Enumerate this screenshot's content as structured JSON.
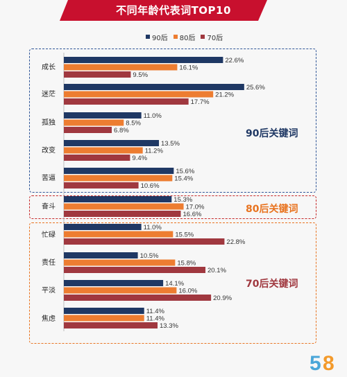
{
  "title": "不同年龄代表词TOP10",
  "legend": [
    {
      "name": "90后",
      "color": "#1f3864"
    },
    {
      "name": "80后",
      "color": "#ed7d31"
    },
    {
      "name": "70后",
      "color": "#a0383f"
    }
  ],
  "groups": {
    "g90": {
      "label": "90后关键词",
      "color": "#1f3864",
      "border": "#2e5597"
    },
    "g80": {
      "label": "80后关键词",
      "color": "#e8731f",
      "border": "#c62828"
    },
    "g70": {
      "label": "70后关键词",
      "color": "#a0383f",
      "border": "#e8731f"
    }
  },
  "logo_text": "58",
  "chart_data": {
    "type": "bar",
    "orientation": "horizontal",
    "title": "不同年龄代表词TOP10",
    "categories": [
      "成长",
      "迷茫",
      "孤独",
      "改变",
      "苦逼",
      "奋斗",
      "忙碌",
      "责任",
      "平淡",
      "焦虑"
    ],
    "series": [
      {
        "name": "90后",
        "color": "#1f3864",
        "values": [
          22.6,
          25.6,
          11.0,
          13.5,
          15.6,
          15.3,
          11.0,
          10.5,
          14.1,
          11.4
        ]
      },
      {
        "name": "80后",
        "color": "#ed7d31",
        "values": [
          16.1,
          21.2,
          8.5,
          11.2,
          15.4,
          17.0,
          15.5,
          15.8,
          16.0,
          11.4
        ]
      },
      {
        "name": "70后",
        "color": "#a0383f",
        "values": [
          9.5,
          17.7,
          6.8,
          9.4,
          10.6,
          16.6,
          22.8,
          20.1,
          20.9,
          13.3
        ]
      }
    ],
    "value_labels": [
      [
        "22.6%",
        "25.6%",
        "11.0%",
        "13.5%",
        "15.6%",
        "15.3%",
        "11.0%",
        "10.5%",
        "14.1%",
        "11.4%"
      ],
      [
        "16.1%",
        "21.2%",
        "8.5%",
        "11.2%",
        "15.4%",
        "17.0%",
        "15.5%",
        "15.8%",
        "16.0%",
        "11.4%"
      ],
      [
        "9.5%",
        "17.7%",
        "6.8%",
        "9.4%",
        "10.6%",
        "16.6%",
        "22.8%",
        "20.1%",
        "20.9%",
        "13.3%"
      ]
    ],
    "legend_position": "top",
    "grid": false
  }
}
